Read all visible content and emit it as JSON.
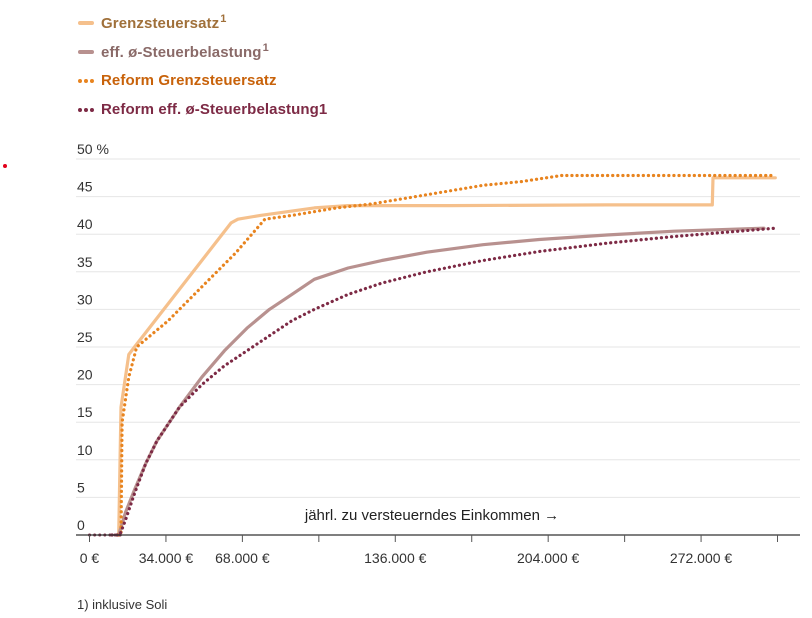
{
  "legend": {
    "items": [
      {
        "label": "Grenzsteuersatz",
        "sup": "1",
        "style": "solid",
        "color": "#f5c08c",
        "text_color": "#a0703a"
      },
      {
        "label": "eff. ø-Steuerbelastung",
        "sup": "1",
        "style": "solid",
        "color": "#b8918f",
        "text_color": "#8a6a68"
      },
      {
        "label": "Reform Grenzsteuersatz",
        "sup": "",
        "style": "dotted",
        "color": "#e8841f",
        "text_color": "#c8620a"
      },
      {
        "label": "Reform eff. ø-Steuerbelastung1",
        "sup": "",
        "style": "dotted",
        "color": "#7d2a45",
        "text_color": "#7d2a45"
      }
    ]
  },
  "footnote": "1) inklusive Soli",
  "chart_data": {
    "type": "line",
    "xlim": [
      -6000,
      316000
    ],
    "ylim": [
      0,
      50
    ],
    "y_ticks": [
      0,
      5,
      10,
      15,
      20,
      25,
      30,
      35,
      40,
      45,
      50
    ],
    "y_tick_labels": [
      "0",
      "5",
      "10",
      "15",
      "20",
      "25",
      "30",
      "35",
      "40",
      "45",
      "50 %"
    ],
    "x_ticks": [
      0,
      34000,
      68000,
      136000,
      204000,
      272000
    ],
    "x_tick_labels": [
      "0 €",
      "34.000 €",
      "68.000 €",
      "136.000 €",
      "204.000 €",
      "272.000 €"
    ],
    "x_minor_ticks": [
      0,
      34000,
      68000,
      102000,
      136000,
      170000,
      204000,
      238000,
      272000,
      306000
    ],
    "xlabel": "jährl. zu versteuerndes Einkommen →",
    "grid": true,
    "series": [
      {
        "name": "Grenzsteuersatz",
        "style": "solid",
        "color": "#f5c08c",
        "points": [
          [
            12000,
            0
          ],
          [
            13000,
            0
          ],
          [
            14000,
            17
          ],
          [
            17500,
            24
          ],
          [
            20000,
            25
          ],
          [
            63000,
            41.5
          ],
          [
            66000,
            42
          ],
          [
            76000,
            42.5
          ],
          [
            100000,
            43.5
          ],
          [
            115000,
            43.8
          ],
          [
            160000,
            43.8
          ],
          [
            230000,
            43.9
          ],
          [
            277000,
            43.9
          ],
          [
            277300,
            47.5
          ],
          [
            305000,
            47.5
          ]
        ]
      },
      {
        "name": "eff. ø-Steuerbelastung",
        "style": "solid",
        "color": "#b8918f",
        "points": [
          [
            13000,
            0
          ],
          [
            16000,
            3
          ],
          [
            20000,
            6
          ],
          [
            25000,
            9.5
          ],
          [
            30000,
            12.5
          ],
          [
            40000,
            17
          ],
          [
            50000,
            21
          ],
          [
            60000,
            24.5
          ],
          [
            70000,
            27.5
          ],
          [
            80000,
            30
          ],
          [
            90000,
            32
          ],
          [
            100000,
            34
          ],
          [
            115000,
            35.5
          ],
          [
            130000,
            36.5
          ],
          [
            150000,
            37.6
          ],
          [
            175000,
            38.6
          ],
          [
            200000,
            39.3
          ],
          [
            230000,
            39.9
          ],
          [
            260000,
            40.4
          ],
          [
            300000,
            40.8
          ]
        ]
      },
      {
        "name": "Reform Grenzsteuersatz",
        "style": "dotted",
        "color": "#e8841f",
        "points": [
          [
            13000,
            0
          ],
          [
            14000,
            0
          ],
          [
            14500,
            15
          ],
          [
            17500,
            21
          ],
          [
            21000,
            25
          ],
          [
            35000,
            28.5
          ],
          [
            50000,
            33
          ],
          [
            65000,
            37.5
          ],
          [
            78000,
            42
          ],
          [
            90000,
            42.5
          ],
          [
            110000,
            43.5
          ],
          [
            125000,
            44
          ],
          [
            145000,
            45
          ],
          [
            175000,
            46.5
          ],
          [
            192000,
            47
          ],
          [
            210000,
            47.8
          ],
          [
            240000,
            47.8
          ],
          [
            305000,
            47.8
          ]
        ]
      },
      {
        "name": "Reform eff. ø-Steuerbelastung1",
        "style": "dotted",
        "color": "#7d2a45",
        "points": [
          [
            10000,
            0
          ],
          [
            13500,
            0
          ],
          [
            16000,
            2
          ],
          [
            20000,
            5.5
          ],
          [
            25000,
            9.5
          ],
          [
            30000,
            12.5
          ],
          [
            40000,
            17
          ],
          [
            50000,
            20
          ],
          [
            60000,
            22.5
          ],
          [
            70000,
            24.5
          ],
          [
            80000,
            26.5
          ],
          [
            90000,
            28.5
          ],
          [
            100000,
            30
          ],
          [
            115000,
            32
          ],
          [
            130000,
            33.5
          ],
          [
            150000,
            35
          ],
          [
            175000,
            36.5
          ],
          [
            200000,
            37.7
          ],
          [
            230000,
            38.8
          ],
          [
            260000,
            39.7
          ],
          [
            305000,
            40.8
          ]
        ]
      }
    ]
  }
}
